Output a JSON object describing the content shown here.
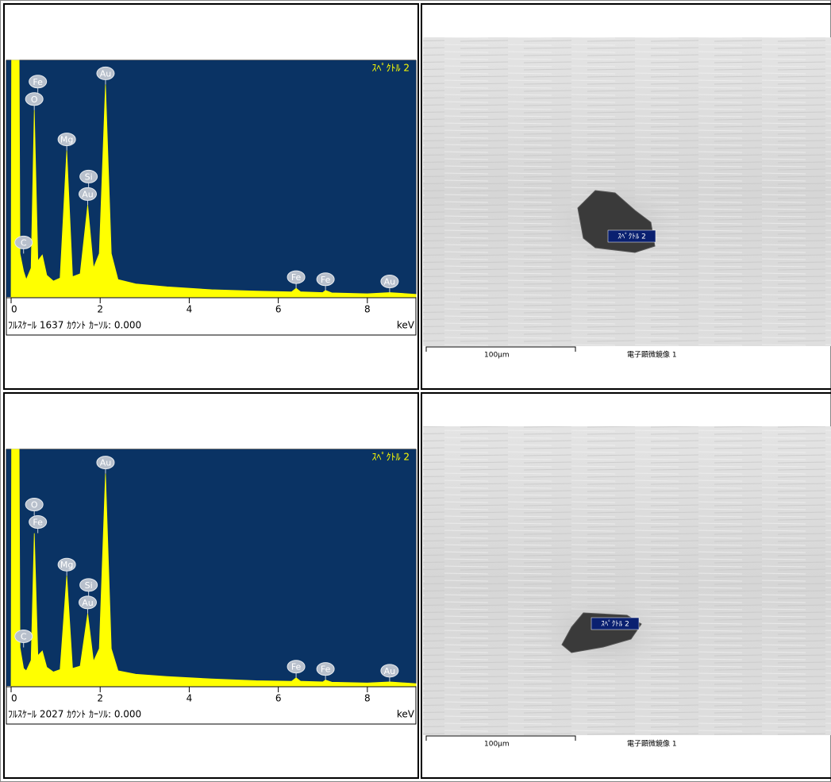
{
  "chart_data": [
    {
      "type": "area",
      "title": "ｽﾍﾟｸﾄﾙ 2",
      "caption": "ﾌﾙｽｹｰﾙ 1637 ｶｳﾝﾄ ｶｰｿﾙ: 0.000",
      "x_label": "keV",
      "color": "#ffff00",
      "background": "#0a3364",
      "xlim": [
        0,
        9.09
      ],
      "ylim": [
        0,
        1637
      ],
      "xticks": [
        0,
        2,
        4,
        6,
        8
      ],
      "x": [
        0,
        0.01,
        0.18,
        0.2,
        0.28,
        0.34,
        0.45,
        0.52,
        0.6,
        0.7,
        0.8,
        0.95,
        1.1,
        1.25,
        1.38,
        1.55,
        1.72,
        1.85,
        1.98,
        2.12,
        2.25,
        2.4,
        2.8,
        3.5,
        4.5,
        5.5,
        6.3,
        6.4,
        6.5,
        7.0,
        7.06,
        7.2,
        8.0,
        8.5,
        9.09
      ],
      "values": [
        0,
        1637,
        1637,
        300,
        178,
        120,
        200,
        1292,
        250,
        290,
        150,
        110,
        130,
        1013,
        140,
        160,
        635,
        200,
        300,
        1470,
        300,
        120,
        90,
        70,
        50,
        40,
        35,
        60,
        35,
        30,
        45,
        28,
        22,
        30,
        18
      ],
      "peak_labels": [
        {
          "name": "C",
          "energy": 0.28
        },
        {
          "name": "O",
          "energy": 0.52
        },
        {
          "name": "Fe",
          "energy": 0.6
        },
        {
          "name": "Mg",
          "energy": 1.25
        },
        {
          "name": "Au",
          "energy": 1.72
        },
        {
          "name": "Si",
          "energy": 1.74
        },
        {
          "name": "Au",
          "energy": 2.12
        },
        {
          "name": "Fe",
          "energy": 6.4
        },
        {
          "name": "Fe",
          "energy": 7.06
        },
        {
          "name": "Au",
          "energy": 8.5
        }
      ]
    },
    {
      "type": "area",
      "title": "ｽﾍﾟｸﾄﾙ 2",
      "caption": "ﾌﾙｽｹｰﾙ 2027 ｶｳﾝﾄ ｶｰｿﾙ: 0.000",
      "x_label": "keV",
      "color": "#ffff00",
      "background": "#0a3364",
      "xlim": [
        0,
        9.09
      ],
      "ylim": [
        0,
        2027
      ],
      "xticks": [
        0,
        2,
        4,
        6,
        8
      ],
      "x": [
        0,
        0.01,
        0.18,
        0.2,
        0.28,
        0.34,
        0.45,
        0.52,
        0.6,
        0.7,
        0.8,
        0.95,
        1.1,
        1.25,
        1.38,
        1.55,
        1.72,
        1.85,
        1.98,
        2.12,
        2.25,
        2.4,
        2.8,
        3.5,
        4.5,
        5.5,
        6.3,
        6.4,
        6.5,
        7.0,
        7.06,
        7.2,
        8.0,
        8.5,
        9.09
      ],
      "values": [
        0,
        2027,
        2027,
        330,
        150,
        130,
        220,
        1309,
        260,
        300,
        160,
        120,
        140,
        944,
        150,
        170,
        620,
        210,
        320,
        1819,
        320,
        130,
        100,
        80,
        60,
        45,
        40,
        70,
        40,
        35,
        50,
        32,
        25,
        35,
        20
      ],
      "peak_labels": [
        {
          "name": "C",
          "energy": 0.28
        },
        {
          "name": "Fe",
          "energy": 0.6
        },
        {
          "name": "O",
          "energy": 0.52
        },
        {
          "name": "Mg",
          "energy": 1.25
        },
        {
          "name": "Au",
          "energy": 1.72
        },
        {
          "name": "Si",
          "energy": 1.74
        },
        {
          "name": "Au",
          "energy": 2.12
        },
        {
          "name": "Fe",
          "energy": 6.4
        },
        {
          "name": "Fe",
          "energy": 7.06
        },
        {
          "name": "Au",
          "energy": 8.5
        }
      ]
    }
  ],
  "images": [
    {
      "label": "ｽﾍﾟｸﾄﾙ 2",
      "scale": "100μm",
      "caption": "電子顕微鏡像 1"
    },
    {
      "label": "ｽﾍﾟｸﾄﾙ 2",
      "scale": "100μm",
      "caption": "電子顕微鏡像 1"
    }
  ]
}
